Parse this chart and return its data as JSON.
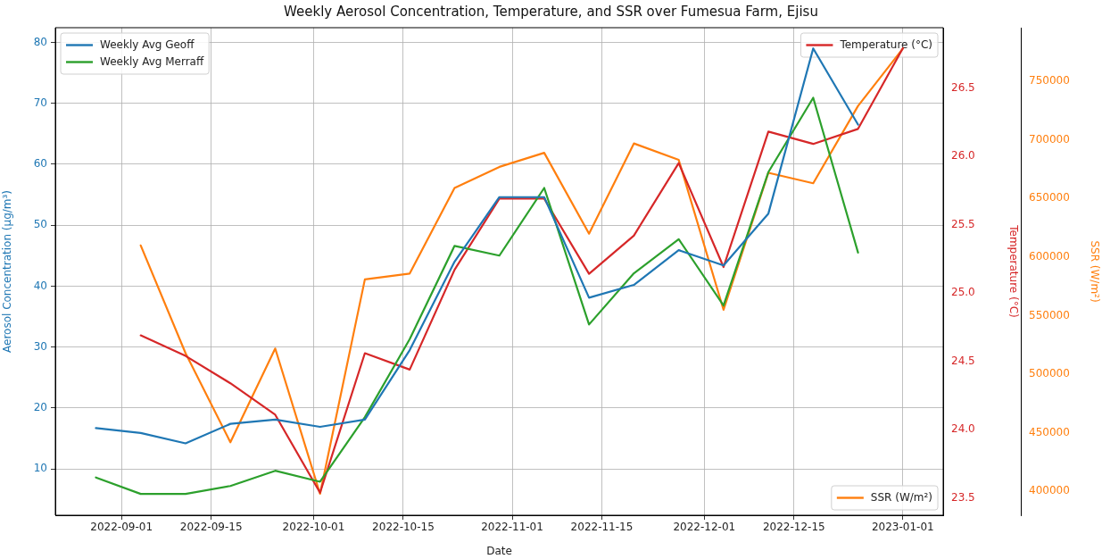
{
  "chart_data": {
    "type": "line",
    "title": "Weekly Aerosol Concentration, Temperature, and SSR over Fumesua Farm, Ejisu",
    "xlabel": "Date",
    "ylabel": "Aerosol Concentration (µg/m³)",
    "y2label": "Temperature (°C)",
    "y3label": "SSR (W/m²)",
    "x": [
      "2022-08-28",
      "2022-09-04",
      "2022-09-11",
      "2022-09-18",
      "2022-09-25",
      "2022-10-02",
      "2022-10-09",
      "2022-10-16",
      "2022-10-23",
      "2022-10-30",
      "2022-11-06",
      "2022-11-13",
      "2022-11-20",
      "2022-11-27",
      "2022-12-04",
      "2022-12-11",
      "2022-12-18",
      "2022-12-25",
      "2023-01-01"
    ],
    "series": [
      {
        "name": "Weekly Avg Geoff",
        "color": "#1f77b4",
        "values": [
          16.7,
          15.9,
          14.2,
          17.4,
          18.1,
          16.9,
          18.1,
          29.5,
          44.0,
          54.6,
          54.6,
          38.1,
          40.2,
          45.9,
          43.4,
          51.9,
          79.0,
          66.5,
          null
        ]
      },
      {
        "name": "Weekly Avg Merraff",
        "color": "#2ca02c",
        "values": [
          8.6,
          5.9,
          5.9,
          7.2,
          9.7,
          7.9,
          18.5,
          31.3,
          46.6,
          45.0,
          56.1,
          33.7,
          42.1,
          47.7,
          36.8,
          58.7,
          70.9,
          45.5,
          null
        ]
      },
      {
        "name": "Temperature (°C)",
        "color": "#d62728",
        "axis": "y2",
        "values": [
          null,
          24.69,
          24.54,
          24.34,
          24.11,
          23.54,
          24.56,
          24.44,
          25.17,
          25.69,
          25.69,
          25.14,
          25.42,
          25.95,
          25.19,
          26.18,
          26.09,
          26.2,
          26.79
        ]
      },
      {
        "name": "SSR (W/m²)",
        "color": "#ff7f0e",
        "axis": "y3",
        "values": [
          null,
          610000,
          518000,
          442000,
          522000,
          398000,
          581000,
          586000,
          659000,
          677000,
          689000,
          620000,
          697000,
          683000,
          555000,
          672000,
          663000,
          729000,
          778000
        ]
      }
    ],
    "xlim": [
      "2022-08-21T16:00",
      "2023-01-07T07:00"
    ],
    "xticks": [
      "2022-09-01",
      "2022-09-15",
      "2022-10-01",
      "2022-10-15",
      "2022-11-01",
      "2022-11-15",
      "2022-12-01",
      "2022-12-15",
      "2023-01-01"
    ],
    "ylim": [
      2.4,
      82.4
    ],
    "yticks": [
      10,
      20,
      30,
      40,
      50,
      60,
      70,
      80
    ],
    "y2lim": [
      23.375,
      26.94
    ],
    "y2ticks": [
      {
        "value": 23.5,
        "label": "23.5"
      },
      {
        "value": 24,
        "label": "24.0"
      },
      {
        "value": 24.5,
        "label": "24.5"
      },
      {
        "value": 25,
        "label": "25.0"
      },
      {
        "value": 25.5,
        "label": "25.5"
      },
      {
        "value": 26,
        "label": "26.0"
      },
      {
        "value": 26.5,
        "label": "26.5"
      }
    ],
    "y3lim": [
      379700,
      795800
    ],
    "y3ticks": [
      400000,
      450000,
      500000,
      550000,
      600000,
      650000,
      700000,
      750000
    ],
    "grid": true,
    "legend": "top left",
    "marker": "none",
    "line_style": "solid"
  }
}
